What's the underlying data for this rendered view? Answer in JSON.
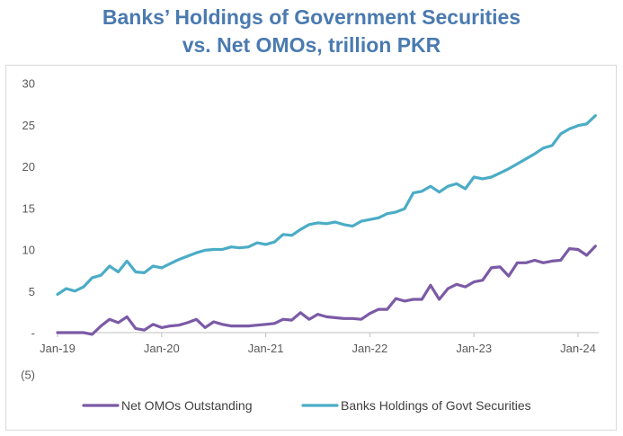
{
  "chart_data": {
    "type": "line",
    "title": "Banks’ Holdings of Government Securities vs. Net OMOs, trillion PKR",
    "title_lines": [
      "Banks’ Holdings of Government Securities",
      "vs. Net OMOs, trillion PKR"
    ],
    "x_start": "2019-01",
    "x_step": "month",
    "x_ticks": [
      {
        "label": "Jan-19",
        "index": 0
      },
      {
        "label": "Jan-20",
        "index": 12
      },
      {
        "label": "Jan-21",
        "index": 24
      },
      {
        "label": "Jan-22",
        "index": 36
      },
      {
        "label": "Jan-23",
        "index": 48
      },
      {
        "label": "Jan-24",
        "index": 60
      }
    ],
    "y_ticks": [
      {
        "label": "(5)",
        "value": -5
      },
      {
        "label": "-",
        "value": 0
      },
      {
        "label": "5",
        "value": 5
      },
      {
        "label": "10",
        "value": 10
      },
      {
        "label": "15",
        "value": 15
      },
      {
        "label": "20",
        "value": 20
      },
      {
        "label": "25",
        "value": 25
      },
      {
        "label": "30",
        "value": 30
      }
    ],
    "ylim": [
      -5,
      30
    ],
    "grid": false,
    "legend_position": "bottom",
    "series": [
      {
        "name": "Net OMOs Outstanding",
        "color": "#7b5aa6",
        "values": [
          0.0,
          0.0,
          0.0,
          0.0,
          -0.2,
          0.8,
          1.6,
          1.2,
          1.9,
          0.5,
          0.3,
          1.0,
          0.6,
          0.8,
          0.9,
          1.2,
          1.6,
          0.6,
          1.3,
          1.0,
          0.8,
          0.8,
          0.8,
          0.9,
          1.0,
          1.1,
          1.6,
          1.5,
          2.4,
          1.6,
          2.2,
          1.9,
          1.8,
          1.7,
          1.7,
          1.6,
          2.3,
          2.8,
          2.8,
          4.1,
          3.8,
          4.0,
          4.0,
          5.7,
          4.0,
          5.3,
          5.8,
          5.5,
          6.1,
          6.3,
          7.8,
          7.9,
          6.8,
          8.4,
          8.4,
          8.7,
          8.4,
          8.6,
          8.7,
          10.1,
          10.0,
          9.3,
          10.4
        ]
      },
      {
        "name": "Banks Holdings of Govt Securities",
        "color": "#4bacc6",
        "values": [
          4.6,
          5.3,
          5.0,
          5.5,
          6.6,
          6.9,
          8.0,
          7.3,
          8.6,
          7.3,
          7.2,
          8.0,
          7.8,
          8.3,
          8.8,
          9.2,
          9.6,
          9.9,
          10.0,
          10.0,
          10.3,
          10.2,
          10.3,
          10.8,
          10.6,
          10.9,
          11.8,
          11.7,
          12.4,
          13.0,
          13.2,
          13.1,
          13.3,
          13.0,
          12.8,
          13.4,
          13.6,
          13.8,
          14.3,
          14.5,
          14.9,
          16.8,
          17.0,
          17.6,
          16.9,
          17.6,
          17.9,
          17.3,
          18.7,
          18.5,
          18.7,
          19.2,
          19.7,
          20.3,
          20.9,
          21.5,
          22.2,
          22.5,
          23.9,
          24.5,
          24.9,
          25.1,
          26.1
        ]
      }
    ]
  }
}
